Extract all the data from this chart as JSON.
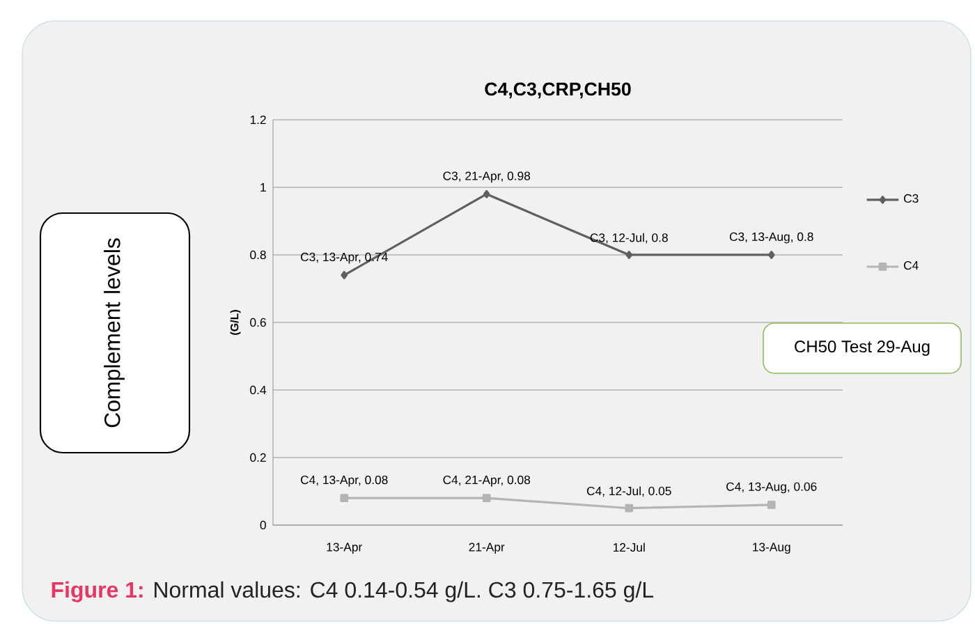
{
  "chart_data": {
    "type": "line",
    "title": "C4,C3,CRP,CH50",
    "ylabel": "(G/L)",
    "categories": [
      "13-Apr",
      "21-Apr",
      "12-Jul",
      "13-Aug"
    ],
    "series": [
      {
        "name": "C3",
        "color": "#5f5f5f",
        "marker": "diamond",
        "values": [
          0.74,
          0.98,
          0.8,
          0.8
        ],
        "value_labels": [
          "C3, 13-Apr, 0.74",
          "C3, 21-Apr, 0.98",
          "C3, 12-Jul, 0.8",
          "C3, 13-Aug, 0.8"
        ]
      },
      {
        "name": "C4",
        "color": "#b4b4b4",
        "marker": "square",
        "values": [
          0.08,
          0.08,
          0.05,
          0.06
        ],
        "value_labels": [
          "C4, 13-Apr, 0.08",
          "C4, 21-Apr, 0.08",
          "C4, 12-Jul, 0.05",
          "C4, 13-Aug, 0.06"
        ]
      }
    ],
    "ylim": [
      0,
      1.2
    ],
    "yticks": [
      0,
      0.2,
      0.4,
      0.6,
      0.8,
      1,
      1.2
    ],
    "grid": "y",
    "legend": "right",
    "annotations": [
      "Complement levels",
      "CH50 Test 29-Aug",
      "Figure 1:",
      "Normal values: C4 0.14-0.54 g/L. C3 0.75-1.65 g/L"
    ]
  }
}
